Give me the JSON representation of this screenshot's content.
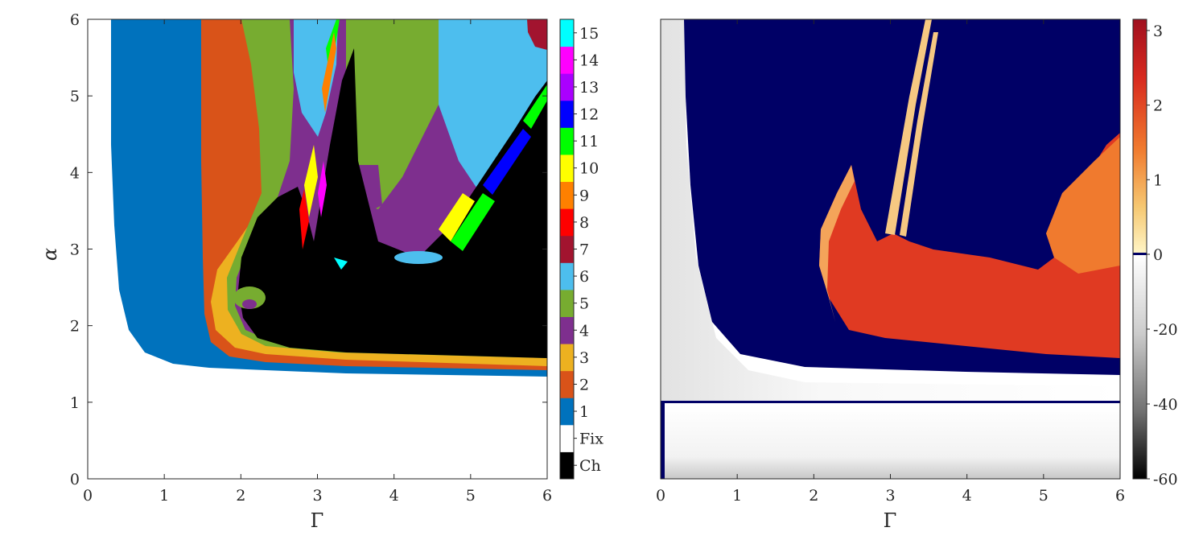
{
  "chart_data": [
    {
      "type": "heatmap",
      "title": "",
      "xlabel": "Γ",
      "ylabel": "α",
      "xlim": [
        0,
        6
      ],
      "ylim": [
        0,
        6
      ],
      "x_ticks": [
        "0",
        "1",
        "2",
        "3",
        "4",
        "5",
        "6"
      ],
      "y_ticks": [
        "0",
        "1",
        "2",
        "3",
        "4",
        "5",
        "6"
      ],
      "grid": false,
      "colorbar": {
        "type": "categorical",
        "placement": "right",
        "categories": [
          {
            "label": "Ch",
            "color": "#000000"
          },
          {
            "label": "Fix",
            "color": "#ffffff"
          },
          {
            "label": "1",
            "color": "#0072bd"
          },
          {
            "label": "2",
            "color": "#d95319"
          },
          {
            "label": "3",
            "color": "#edb120"
          },
          {
            "label": "4",
            "color": "#7e2f8e"
          },
          {
            "label": "5",
            "color": "#77ac30"
          },
          {
            "label": "6",
            "color": "#4dbeee"
          },
          {
            "label": "7",
            "color": "#a2142f"
          },
          {
            "label": "8",
            "color": "#ff0000"
          },
          {
            "label": "9",
            "color": "#ff8000"
          },
          {
            "label": "10",
            "color": "#ffff00"
          },
          {
            "label": "11",
            "color": "#00ff00"
          },
          {
            "label": "12",
            "color": "#0000ff"
          },
          {
            "label": "13",
            "color": "#aa00ff"
          },
          {
            "label": "14",
            "color": "#ff00ff"
          },
          {
            "label": "15",
            "color": "#00ffff"
          }
        ]
      }
    },
    {
      "type": "heatmap",
      "title": "",
      "xlabel": "Γ",
      "ylabel": "",
      "xlim": [
        0,
        6
      ],
      "ylim": [
        0,
        6
      ],
      "x_ticks": [
        "0",
        "1",
        "2",
        "3",
        "4",
        "5",
        "6"
      ],
      "grid": false,
      "colorbar": {
        "type": "continuous",
        "placement": "right",
        "ticks": [
          "3",
          "2",
          "1",
          "0",
          "-20",
          "-40",
          "-60"
        ],
        "range_positive": [
          0,
          3.15
        ],
        "range_negative": [
          -60,
          0
        ],
        "colors": {
          "max": "#b0162a",
          "mid_positive": "#f0502a",
          "low_positive": "#fff4c0",
          "zero": "#000066",
          "neg_top": "#ffffff",
          "neg_bottom": "#000000"
        }
      }
    }
  ]
}
